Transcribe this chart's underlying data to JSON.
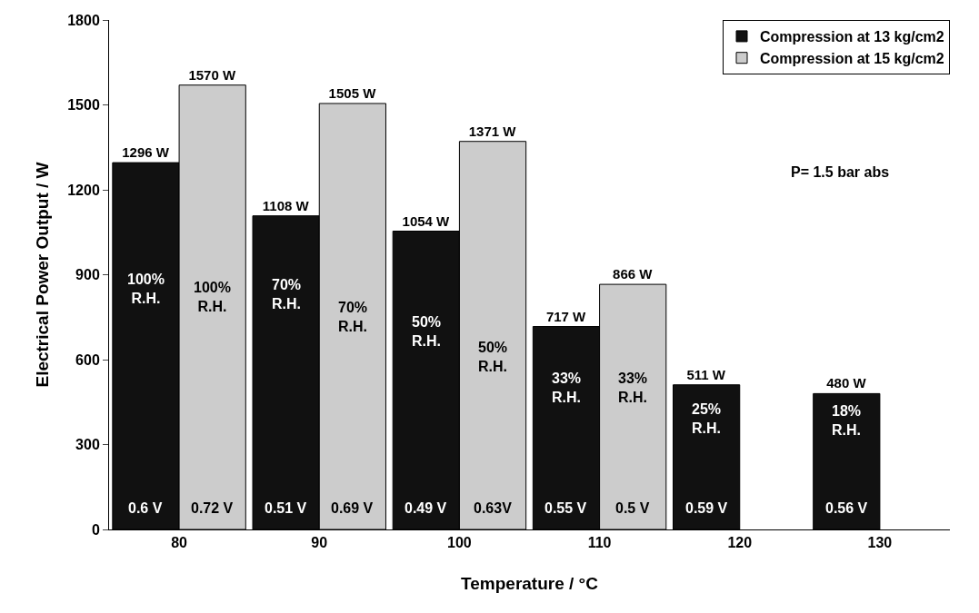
{
  "chart_data": {
    "type": "bar",
    "xlabel": "Temperature / °C",
    "ylabel": "Electrical Power Output / W",
    "categories": [
      "80",
      "90",
      "100",
      "110",
      "120",
      "130"
    ],
    "series": [
      {
        "name": "Compression at 13 kg/cm2",
        "color": "#111111",
        "values": [
          1296,
          1108,
          1054,
          717,
          511,
          480
        ],
        "value_labels": [
          "1296 W",
          "1108 W",
          "1054 W",
          "717 W",
          "511 W",
          "480 W"
        ]
      },
      {
        "name": "Compression at 15 kg/cm2",
        "color": "#cccccc",
        "values": [
          1570,
          1505,
          1371,
          866,
          null,
          null
        ],
        "value_labels": [
          "1570 W",
          "1505 W",
          "1371 W",
          "866 W",
          null,
          null
        ]
      }
    ],
    "ylim": [
      0,
      1800
    ],
    "yticks": [
      0,
      300,
      600,
      900,
      1200,
      1500,
      1800
    ],
    "legend": "top right",
    "annotations": [
      "P= 1.5 bar abs",
      {
        "text": "100%\nR.H.",
        "x": "80",
        "y": 850
      },
      {
        "text": "0.6 V",
        "x": "80",
        "y": 75
      },
      {
        "text": "100%\nR.H.",
        "x": "80",
        "y": 820
      },
      {
        "text": "0.72 V",
        "x": "80",
        "y": 75
      },
      {
        "text": "70%\nR.H.",
        "x": "90",
        "y": 830
      },
      {
        "text": "0.51 V",
        "x": "90",
        "y": 75
      },
      {
        "text": "70%\nR.H.",
        "x": "90",
        "y": 750
      },
      {
        "text": "0.69 V",
        "x": "90",
        "y": 75
      },
      {
        "text": "50%\nR.H.",
        "x": "100",
        "y": 700
      },
      {
        "text": "0.49 V",
        "x": "100",
        "y": 75
      },
      {
        "text": "50%\nR.H.",
        "x": "100",
        "y": 610
      },
      {
        "text": "0.63V",
        "x": "100",
        "y": 75
      },
      {
        "text": "33%\nR.H.",
        "x": "110",
        "y": 500
      },
      {
        "text": "0.55 V",
        "x": "110",
        "y": 75
      },
      {
        "text": "33%\nR.H.",
        "x": "110",
        "y": 500
      },
      {
        "text": "0.5 V",
        "x": "110",
        "y": 75
      },
      {
        "text": "25%\nR.H.",
        "x": "120",
        "y": 390
      },
      {
        "text": "0.59 V",
        "x": "120",
        "y": 75
      },
      {
        "text": "18%\nR.H.",
        "x": "130",
        "y": 385
      },
      {
        "text": "0.56 V",
        "x": "130",
        "y": 75
      }
    ]
  }
}
